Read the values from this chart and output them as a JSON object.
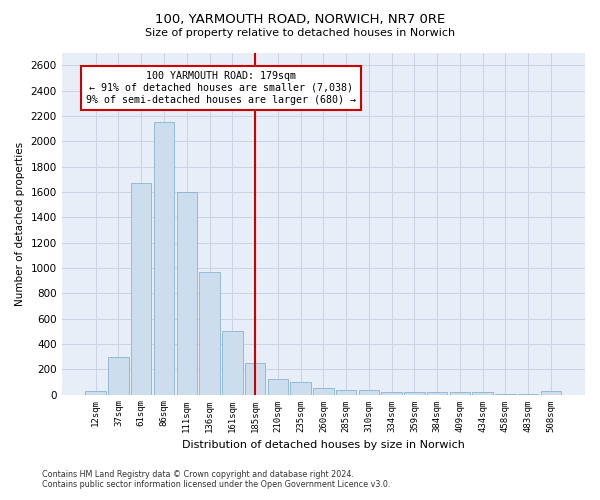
{
  "title": "100, YARMOUTH ROAD, NORWICH, NR7 0RE",
  "subtitle": "Size of property relative to detached houses in Norwich",
  "xlabel": "Distribution of detached houses by size in Norwich",
  "ylabel": "Number of detached properties",
  "bar_color": "#ccdded",
  "bar_edge_color": "#7aaac8",
  "categories": [
    "12sqm",
    "37sqm",
    "61sqm",
    "86sqm",
    "111sqm",
    "136sqm",
    "161sqm",
    "185sqm",
    "210sqm",
    "235sqm",
    "260sqm",
    "285sqm",
    "310sqm",
    "334sqm",
    "359sqm",
    "384sqm",
    "409sqm",
    "434sqm",
    "458sqm",
    "483sqm",
    "508sqm"
  ],
  "values": [
    25,
    300,
    1670,
    2150,
    1600,
    965,
    505,
    250,
    125,
    100,
    50,
    35,
    35,
    20,
    20,
    20,
    20,
    20,
    5,
    5,
    25
  ],
  "ylim": [
    0,
    2700
  ],
  "yticks": [
    0,
    200,
    400,
    600,
    800,
    1000,
    1200,
    1400,
    1600,
    1800,
    2000,
    2200,
    2400,
    2600
  ],
  "vline_index": 7,
  "vline_color": "#cc0000",
  "annotation_title": "100 YARMOUTH ROAD: 179sqm",
  "annotation_line1": "← 91% of detached houses are smaller (7,038)",
  "annotation_line2": "9% of semi-detached houses are larger (680) →",
  "annotation_box_color": "white",
  "annotation_box_edge": "#cc0000",
  "grid_color": "#c8d4e4",
  "background_color": "#e8eef8",
  "title_fontsize": 9.5,
  "subtitle_fontsize": 8,
  "footer_line1": "Contains HM Land Registry data © Crown copyright and database right 2024.",
  "footer_line2": "Contains public sector information licensed under the Open Government Licence v3.0."
}
